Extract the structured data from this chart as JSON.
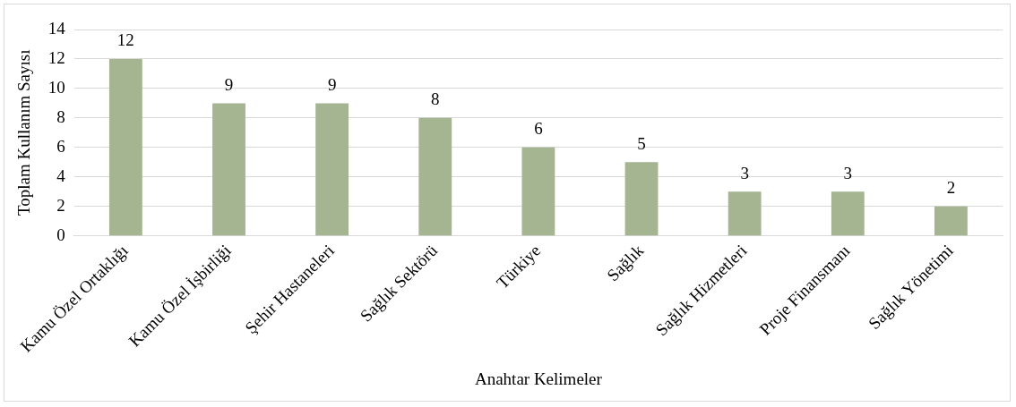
{
  "chart_data": {
    "type": "bar",
    "xlabel": "Anahtar Kelimeler",
    "ylabel": "Toplam Kullanım Sayısı",
    "categories": [
      "Kamu Özel Ortaklığı",
      "Kamu Özel İşbirliği",
      "Şehir Hastaneleri",
      "Sağlık Sektörü",
      "Türkiye",
      "Sağlık",
      "Sağlık Hizmetleri",
      "Proje Finansmanı",
      "Sağlık Yönetimi"
    ],
    "values": [
      12,
      9,
      9,
      8,
      6,
      5,
      3,
      3,
      2
    ],
    "color": "#a5b592",
    "ylim": [
      0,
      14
    ],
    "yticks": [
      0,
      2,
      4,
      6,
      8,
      10,
      12,
      14
    ],
    "grid": "y",
    "data_labels": true
  }
}
